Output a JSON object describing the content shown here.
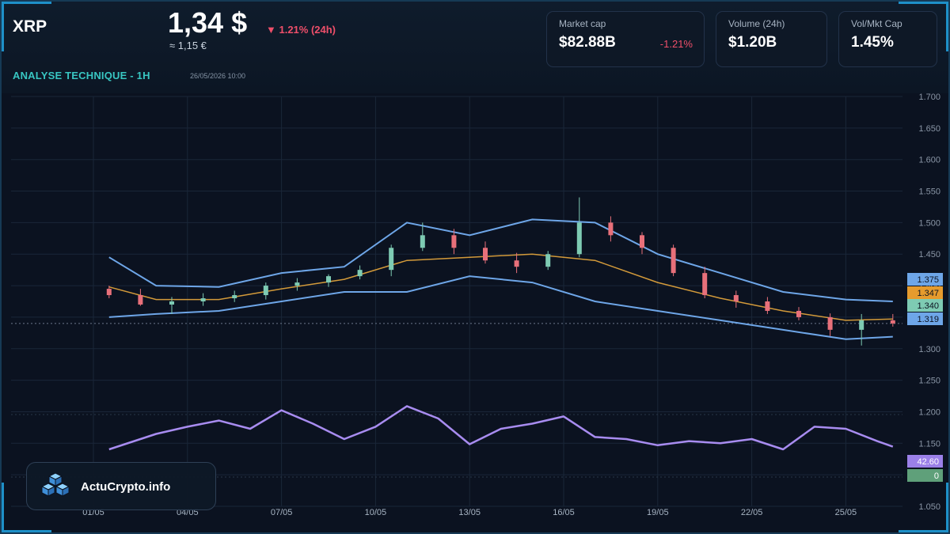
{
  "header": {
    "symbol": "XRP",
    "price": "1,34 $",
    "price_eur": "≈ 1,15 €",
    "change_24h": "▼ 1.21% (24h)",
    "subtitle": "ANALYSE TECHNIQUE - 1H",
    "datetime": "26/05/2026 10:00"
  },
  "stats": [
    {
      "label": "Market cap",
      "value": "$82.88B",
      "sub": "-1.21%"
    },
    {
      "label": "Volume (24h)",
      "value": "$1.20B",
      "sub": ""
    },
    {
      "label": "Vol/Mkt Cap",
      "value": "1.45%",
      "sub": ""
    }
  ],
  "brand": {
    "name": "ActuCrypto.info"
  },
  "colors": {
    "background": "#0b1220",
    "frame": "#1e90c8",
    "up": "#7ecbb3",
    "down": "#e8707a",
    "bollinger": "#6ea6e8",
    "ma": "#d39a3a",
    "rsi": "#a88cf0",
    "accent": "#38c6c2",
    "negative": "#ef4f6a"
  },
  "chart_data": {
    "type": "line",
    "title": "",
    "x_tick_labels": [
      "01/05",
      "04/05",
      "07/05",
      "10/05",
      "13/05",
      "16/05",
      "19/05",
      "22/05",
      "25/05"
    ],
    "y_tick_labels": [
      "1.700",
      "1.650",
      "1.600",
      "1.550",
      "1.500",
      "1.450",
      "1.400",
      "1.350",
      "1.300",
      "1.250",
      "1.200",
      "1.150",
      "1.100",
      "1.050"
    ],
    "ylim": [
      1.05,
      1.7
    ],
    "grid": true,
    "price_tags": [
      {
        "label": "1.375",
        "value": 1.375,
        "color": "#6ea6e8"
      },
      {
        "label": "1.347",
        "value": 1.347,
        "color": "#e69b2d"
      },
      {
        "label": "1.340",
        "value": 1.34,
        "color": "#7ecbb3"
      },
      {
        "label": "1.319",
        "value": 1.319,
        "color": "#6ea6e8"
      }
    ],
    "rsi_tags": [
      {
        "label": "42.60",
        "color": "#9b80e8"
      },
      {
        "label": "0",
        "color": "#5fa07a"
      }
    ],
    "series": [
      {
        "kind": "candles",
        "x": [
          0.5,
          1.5,
          2.5,
          3.5,
          4.5,
          5.5,
          6.5,
          7.5,
          8.5,
          9.5,
          10.5,
          11.5,
          12.5,
          13.5,
          14.5,
          15.5,
          16.5,
          17.5,
          18.5,
          19.5,
          20.5,
          21.5,
          22.5,
          23.5,
          24.5,
          25.5
        ],
        "open": [
          1.395,
          1.385,
          1.37,
          1.375,
          1.38,
          1.385,
          1.4,
          1.405,
          1.415,
          1.425,
          1.46,
          1.48,
          1.46,
          1.44,
          1.43,
          1.45,
          1.5,
          1.48,
          1.46,
          1.42,
          1.385,
          1.375,
          1.36,
          1.35,
          1.33,
          1.345
        ],
        "high": [
          1.4,
          1.395,
          1.382,
          1.388,
          1.392,
          1.405,
          1.412,
          1.418,
          1.432,
          1.465,
          1.5,
          1.49,
          1.47,
          1.452,
          1.455,
          1.54,
          1.51,
          1.485,
          1.465,
          1.43,
          1.392,
          1.382,
          1.366,
          1.356,
          1.355,
          1.355
        ],
        "low": [
          1.38,
          1.368,
          1.355,
          1.368,
          1.374,
          1.378,
          1.392,
          1.398,
          1.41,
          1.415,
          1.455,
          1.45,
          1.435,
          1.42,
          1.425,
          1.445,
          1.47,
          1.45,
          1.415,
          1.38,
          1.365,
          1.355,
          1.345,
          1.32,
          1.305,
          1.335
        ],
        "close": [
          1.385,
          1.37,
          1.375,
          1.38,
          1.385,
          1.4,
          1.405,
          1.415,
          1.425,
          1.46,
          1.48,
          1.46,
          1.44,
          1.43,
          1.45,
          1.5,
          1.48,
          1.46,
          1.42,
          1.385,
          1.375,
          1.36,
          1.35,
          1.33,
          1.345,
          1.34
        ]
      },
      {
        "kind": "upper-band",
        "x": [
          0.5,
          2,
          4,
          6,
          8,
          10,
          12,
          14,
          16,
          18,
          20,
          22,
          24,
          25.5
        ],
        "values": [
          1.445,
          1.4,
          1.398,
          1.42,
          1.43,
          1.5,
          1.48,
          1.505,
          1.5,
          1.45,
          1.42,
          1.39,
          1.378,
          1.375
        ]
      },
      {
        "kind": "lower-band",
        "x": [
          0.5,
          2,
          4,
          6,
          8,
          10,
          12,
          14,
          16,
          18,
          20,
          22,
          24,
          25.5
        ],
        "values": [
          1.35,
          1.355,
          1.36,
          1.375,
          1.39,
          1.39,
          1.415,
          1.405,
          1.375,
          1.36,
          1.345,
          1.33,
          1.315,
          1.319
        ]
      },
      {
        "kind": "moving-average",
        "x": [
          0.5,
          2,
          4,
          6,
          8,
          10,
          12,
          14,
          16,
          18,
          20,
          22,
          24,
          25.5
        ],
        "values": [
          1.398,
          1.378,
          1.378,
          1.395,
          1.41,
          1.44,
          1.445,
          1.45,
          1.44,
          1.405,
          1.38,
          1.36,
          1.345,
          1.347
        ]
      },
      {
        "kind": "rsi",
        "x": [
          0.5,
          1,
          2,
          3,
          4,
          5,
          6,
          7,
          8,
          9,
          10,
          11,
          12,
          13,
          14,
          15,
          16,
          17,
          18,
          19,
          20,
          21,
          22,
          23,
          24,
          25,
          25.5
        ],
        "values": [
          40,
          45,
          55,
          62,
          68,
          60,
          78,
          65,
          50,
          62,
          82,
          70,
          45,
          60,
          65,
          72,
          52,
          50,
          44,
          48,
          46,
          50,
          40,
          62,
          60,
          48,
          42.6
        ]
      }
    ]
  }
}
